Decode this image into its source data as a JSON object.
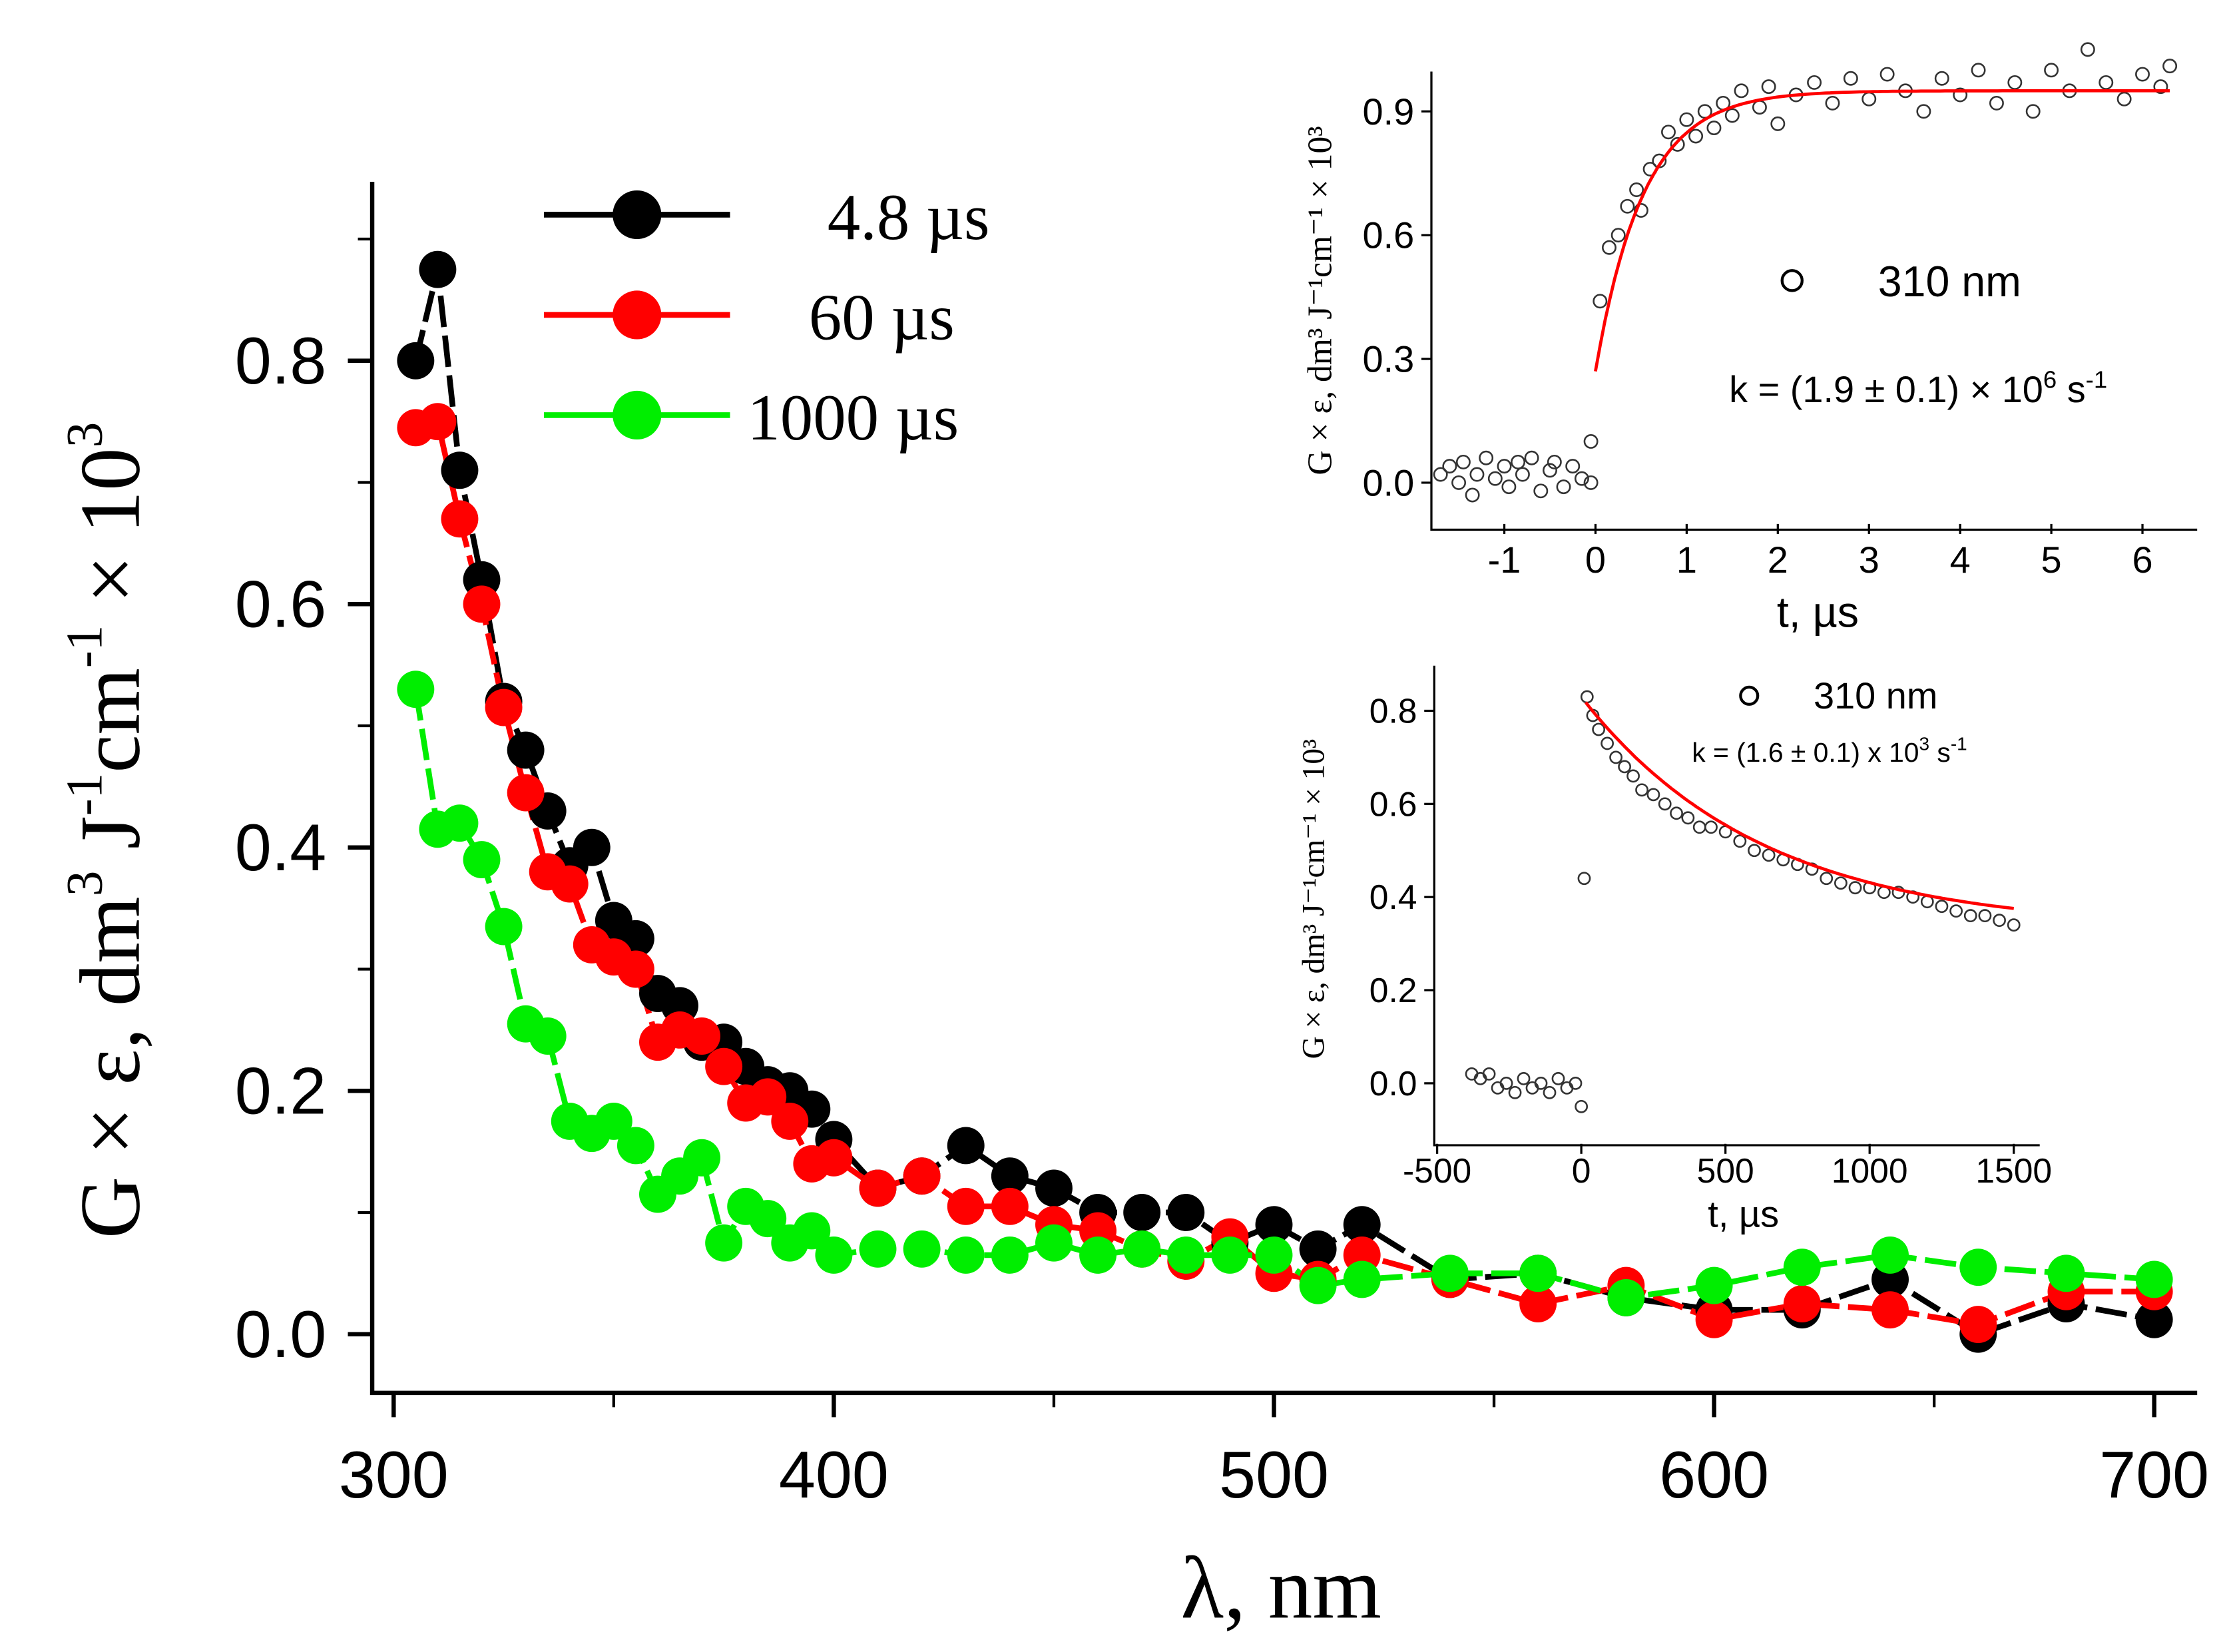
{
  "chart_data": [
    {
      "type": "line",
      "title": "",
      "xlabel": "λ, nm",
      "ylabel": "G × ε, dm³ J⁻¹cm⁻¹ × 10³",
      "ylabel_parts": {
        "main": "G × ε, dm",
        "sup1": "3",
        "j": " J",
        "sup2": "-1",
        "cm": "cm",
        "sup3": "-1",
        "times": " × 10",
        "sup4": "3"
      },
      "xlim": [
        295,
        710
      ],
      "ylim": [
        -0.05,
        0.98
      ],
      "xticks": [
        "300",
        "400",
        "500",
        "600",
        "700"
      ],
      "yticks": [
        "0.0",
        "0.2",
        "0.4",
        "0.6",
        "0.8"
      ],
      "legend_position": "top-center",
      "x": [
        305,
        310,
        315,
        320,
        325,
        330,
        335,
        340,
        345,
        350,
        355,
        360,
        365,
        370,
        375,
        380,
        385,
        390,
        395,
        400,
        410,
        420,
        430,
        440,
        450,
        460,
        470,
        480,
        490,
        500,
        510,
        520,
        540,
        560,
        580,
        600,
        620,
        640,
        660,
        680,
        700
      ],
      "series": [
        {
          "name": "4.8 µs",
          "color": "#000000",
          "values": [
            0.8,
            0.875,
            0.71,
            0.62,
            0.52,
            0.48,
            0.43,
            0.385,
            0.4,
            0.34,
            0.325,
            0.28,
            0.27,
            0.24,
            0.24,
            0.22,
            0.205,
            0.2,
            0.185,
            0.16,
            0.12,
            0.13,
            0.155,
            0.13,
            0.12,
            0.1,
            0.1,
            0.1,
            0.075,
            0.09,
            0.07,
            0.09,
            0.045,
            0.05,
            0.03,
            0.02,
            0.02,
            0.045,
            0.0,
            0.025,
            0.012
          ]
        },
        {
          "name": "60 µs",
          "color": "#ff0000",
          "values": [
            0.745,
            0.75,
            0.67,
            0.6,
            0.515,
            0.445,
            0.38,
            0.37,
            0.32,
            0.31,
            0.3,
            0.24,
            0.25,
            0.245,
            0.22,
            0.19,
            0.195,
            0.175,
            0.14,
            0.145,
            0.12,
            0.13,
            0.105,
            0.105,
            0.09,
            0.085,
            0.07,
            0.06,
            0.08,
            0.05,
            0.045,
            0.065,
            0.045,
            0.025,
            0.04,
            0.012,
            0.025,
            0.02,
            0.008,
            0.035,
            0.035
          ]
        },
        {
          "name": "1000 µs",
          "color": "#00ee00",
          "values": [
            0.53,
            0.415,
            0.42,
            0.39,
            0.335,
            0.255,
            0.245,
            0.175,
            0.165,
            0.175,
            0.155,
            0.115,
            0.13,
            0.145,
            0.075,
            0.105,
            0.095,
            0.075,
            0.085,
            0.065,
            0.07,
            0.07,
            0.065,
            0.065,
            0.075,
            0.065,
            0.07,
            0.065,
            0.065,
            0.065,
            0.04,
            0.045,
            0.05,
            0.05,
            0.03,
            0.04,
            0.055,
            0.065,
            0.055,
            0.05,
            0.045
          ]
        }
      ]
    },
    {
      "type": "scatter",
      "title": "",
      "xlabel": "t, µs",
      "ylabel": "G × ε, dm³ J⁻¹cm⁻¹ × 10³",
      "xlim": [
        -1.8,
        6.6
      ],
      "ylim": [
        -0.1,
        1.0
      ],
      "xticks": [
        "-1",
        "0",
        "1",
        "2",
        "3",
        "4",
        "5",
        "6"
      ],
      "xtick_values": [
        -1,
        0,
        1,
        2,
        3,
        4,
        5,
        6
      ],
      "yticks": [
        "0.0",
        "0.3",
        "0.6",
        "0.9"
      ],
      "ytick_values": [
        0,
        0.3,
        0.6,
        0.9
      ],
      "legend": "310 nm",
      "annotation": {
        "prefix": "k = (1.9 ± 0.1) × 10",
        "exp": "6",
        "unit": " s",
        "unit_exp": "-1"
      },
      "fit": {
        "model": "A - B*exp(-k*t)",
        "A": 0.95,
        "B": 0.68,
        "k": 1.9,
        "t_range": [
          0,
          6.3
        ],
        "color": "#ff0000"
      },
      "points": [
        [
          -1.7,
          0.02
        ],
        [
          -1.6,
          0.04
        ],
        [
          -1.5,
          0.0
        ],
        [
          -1.45,
          0.05
        ],
        [
          -1.35,
          -0.03
        ],
        [
          -1.3,
          0.02
        ],
        [
          -1.2,
          0.06
        ],
        [
          -1.1,
          0.01
        ],
        [
          -1.0,
          0.04
        ],
        [
          -0.95,
          -0.01
        ],
        [
          -0.85,
          0.05
        ],
        [
          -0.8,
          0.02
        ],
        [
          -0.7,
          0.06
        ],
        [
          -0.6,
          -0.02
        ],
        [
          -0.5,
          0.03
        ],
        [
          -0.45,
          0.05
        ],
        [
          -0.35,
          -0.01
        ],
        [
          -0.25,
          0.04
        ],
        [
          -0.15,
          0.01
        ],
        [
          -0.05,
          0.1
        ],
        [
          -0.05,
          0.0
        ],
        [
          0.05,
          0.44
        ],
        [
          0.15,
          0.57
        ],
        [
          0.25,
          0.6
        ],
        [
          0.35,
          0.67
        ],
        [
          0.45,
          0.71
        ],
        [
          0.5,
          0.66
        ],
        [
          0.6,
          0.76
        ],
        [
          0.7,
          0.78
        ],
        [
          0.8,
          0.85
        ],
        [
          0.9,
          0.82
        ],
        [
          1.0,
          0.88
        ],
        [
          1.1,
          0.84
        ],
        [
          1.2,
          0.9
        ],
        [
          1.3,
          0.86
        ],
        [
          1.4,
          0.92
        ],
        [
          1.5,
          0.89
        ],
        [
          1.6,
          0.95
        ],
        [
          1.8,
          0.91
        ],
        [
          1.9,
          0.96
        ],
        [
          2.0,
          0.87
        ],
        [
          2.2,
          0.94
        ],
        [
          2.4,
          0.97
        ],
        [
          2.6,
          0.92
        ],
        [
          2.8,
          0.98
        ],
        [
          3.0,
          0.93
        ],
        [
          3.2,
          0.99
        ],
        [
          3.4,
          0.95
        ],
        [
          3.6,
          0.9
        ],
        [
          3.8,
          0.98
        ],
        [
          4.0,
          0.94
        ],
        [
          4.2,
          1.0
        ],
        [
          4.4,
          0.92
        ],
        [
          4.6,
          0.97
        ],
        [
          4.8,
          0.9
        ],
        [
          5.0,
          1.0
        ],
        [
          5.2,
          0.95
        ],
        [
          5.4,
          1.05
        ],
        [
          5.6,
          0.97
        ],
        [
          5.8,
          0.93
        ],
        [
          6.0,
          0.99
        ],
        [
          6.2,
          0.96
        ],
        [
          6.3,
          1.01
        ]
      ]
    },
    {
      "type": "scatter",
      "title": "",
      "xlabel": "t, µs",
      "ylabel": "G × ε, dm³ J⁻¹cm⁻¹ × 10³",
      "xlim": [
        -510,
        1590
      ],
      "ylim": [
        -0.13,
        0.9
      ],
      "xticks": [
        "-500",
        "0",
        "500",
        "1000",
        "1500"
      ],
      "xtick_values": [
        -500,
        0,
        500,
        1000,
        1500
      ],
      "yticks": [
        "0.0",
        "0.2",
        "0.4",
        "0.6",
        "0.8"
      ],
      "ytick_values": [
        0,
        0.2,
        0.4,
        0.6,
        0.8
      ],
      "legend": "310 nm",
      "annotation": {
        "prefix": "k = (1.6 ± 0.1) x 10",
        "exp": "3",
        "unit": " s",
        "unit_exp": "-1"
      },
      "fit": {
        "model": "y0 + A*exp(-k*t)",
        "y0": 0.33,
        "A": 0.5,
        "k": 0.0016,
        "t_range": [
          15,
          1500
        ],
        "color": "#ff0000"
      },
      "points": [
        [
          -380,
          0.02
        ],
        [
          -350,
          0.01
        ],
        [
          -320,
          0.02
        ],
        [
          -290,
          -0.01
        ],
        [
          -260,
          0.0
        ],
        [
          -230,
          -0.02
        ],
        [
          -200,
          0.01
        ],
        [
          -170,
          -0.01
        ],
        [
          -140,
          0.0
        ],
        [
          -110,
          -0.02
        ],
        [
          -80,
          0.01
        ],
        [
          -50,
          -0.01
        ],
        [
          -20,
          0.0
        ],
        [
          0,
          -0.05
        ],
        [
          10,
          0.44
        ],
        [
          20,
          0.83
        ],
        [
          40,
          0.79
        ],
        [
          60,
          0.76
        ],
        [
          90,
          0.73
        ],
        [
          120,
          0.7
        ],
        [
          150,
          0.68
        ],
        [
          180,
          0.66
        ],
        [
          210,
          0.63
        ],
        [
          250,
          0.62
        ],
        [
          290,
          0.6
        ],
        [
          330,
          0.58
        ],
        [
          370,
          0.57
        ],
        [
          410,
          0.55
        ],
        [
          450,
          0.55
        ],
        [
          500,
          0.54
        ],
        [
          550,
          0.52
        ],
        [
          600,
          0.5
        ],
        [
          650,
          0.49
        ],
        [
          700,
          0.48
        ],
        [
          750,
          0.47
        ],
        [
          800,
          0.46
        ],
        [
          850,
          0.44
        ],
        [
          900,
          0.43
        ],
        [
          950,
          0.42
        ],
        [
          1000,
          0.42
        ],
        [
          1050,
          0.41
        ],
        [
          1100,
          0.41
        ],
        [
          1150,
          0.4
        ],
        [
          1200,
          0.39
        ],
        [
          1250,
          0.38
        ],
        [
          1300,
          0.37
        ],
        [
          1350,
          0.36
        ],
        [
          1400,
          0.36
        ],
        [
          1450,
          0.35
        ],
        [
          1500,
          0.34
        ]
      ]
    }
  ]
}
